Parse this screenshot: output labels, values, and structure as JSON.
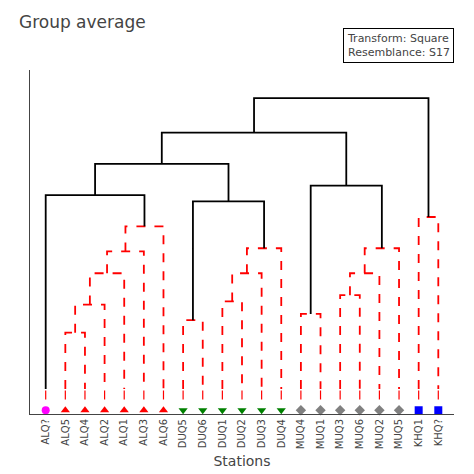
{
  "chart_data": {
    "type": "dendrogram",
    "title": "Group average",
    "xlabel": "Stations",
    "annotations": [
      "Transform: Square",
      "Resemblance: S17"
    ],
    "categories": [
      "ALQ?",
      "ALQ5",
      "ALQ4",
      "ALQ2",
      "ALQ1",
      "ALQ3",
      "ALQ6",
      "DUQ5",
      "DUQ6",
      "DUQ1",
      "DUQ2",
      "DUQ3",
      "DUQ4",
      "MUQ4",
      "MUQ1",
      "MUQ3",
      "MUQ6",
      "MUQ2",
      "MUQ5",
      "KHQ1",
      "KHQ?"
    ],
    "links": [
      {
        "left": "ALQ5",
        "right": "ALQ4",
        "height": 0.18,
        "color": "red",
        "line_style": "dashed"
      },
      {
        "left": 0,
        "right": "ALQ2",
        "height": 0.27,
        "color": "red",
        "line_style": "dashed"
      },
      {
        "left": 1,
        "right": "ALQ1",
        "height": 0.37,
        "color": "red",
        "line_style": "dashed"
      },
      {
        "left": 2,
        "right": "ALQ3",
        "height": 0.44,
        "color": "red",
        "line_style": "dashed"
      },
      {
        "left": 3,
        "right": "ALQ6",
        "height": 0.52,
        "color": "red",
        "line_style": "dashed"
      },
      {
        "left": "DUQ5",
        "right": "DUQ6",
        "height": 0.22,
        "color": "red",
        "line_style": "dashed"
      },
      {
        "left": "DUQ1",
        "right": "DUQ2",
        "height": 0.28,
        "color": "red",
        "line_style": "dashed"
      },
      {
        "left": 6,
        "right": "DUQ3",
        "height": 0.37,
        "color": "red",
        "line_style": "dashed"
      },
      {
        "left": 7,
        "right": "DUQ4",
        "height": 0.45,
        "color": "red",
        "line_style": "dashed"
      },
      {
        "left": "MUQ4",
        "right": "MUQ1",
        "height": 0.24,
        "color": "red",
        "line_style": "dashed"
      },
      {
        "left": "MUQ3",
        "right": "MUQ6",
        "height": 0.3,
        "color": "red",
        "line_style": "dashed"
      },
      {
        "left": 10,
        "right": "MUQ2",
        "height": 0.37,
        "color": "red",
        "line_style": "dashed"
      },
      {
        "left": 11,
        "right": "MUQ5",
        "height": 0.45,
        "color": "red",
        "line_style": "dashed"
      },
      {
        "left": "KHQ1",
        "right": "KHQ?",
        "height": 0.55,
        "color": "red",
        "line_style": "dashed"
      },
      {
        "left": "ALQ?",
        "right": 4,
        "height": 0.62,
        "color": "black",
        "line_style": "solid"
      },
      {
        "left": 5,
        "right": 8,
        "height": 0.6,
        "color": "black",
        "line_style": "solid"
      },
      {
        "left": 14,
        "right": 15,
        "height": 0.72,
        "color": "black",
        "line_style": "solid"
      },
      {
        "left": 9,
        "right": 12,
        "height": 0.65,
        "color": "black",
        "line_style": "solid"
      },
      {
        "left": 16,
        "right": 17,
        "height": 0.82,
        "color": "black",
        "line_style": "solid"
      },
      {
        "left": 18,
        "right": 13,
        "height": 0.93,
        "color": "black",
        "line_style": "solid"
      }
    ],
    "markers": [
      {
        "color": "magenta",
        "marker": "circle"
      },
      {
        "color": "red",
        "marker": "triangle-up"
      },
      {
        "color": "red",
        "marker": "triangle-up"
      },
      {
        "color": "red",
        "marker": "triangle-up"
      },
      {
        "color": "red",
        "marker": "triangle-up"
      },
      {
        "color": "red",
        "marker": "triangle-up"
      },
      {
        "color": "red",
        "marker": "triangle-up"
      },
      {
        "color": "green",
        "marker": "triangle-down"
      },
      {
        "color": "green",
        "marker": "triangle-down"
      },
      {
        "color": "green",
        "marker": "triangle-down"
      },
      {
        "color": "green",
        "marker": "triangle-down"
      },
      {
        "color": "green",
        "marker": "triangle-down"
      },
      {
        "color": "green",
        "marker": "triangle-down"
      },
      {
        "color": "gray",
        "marker": "diamond"
      },
      {
        "color": "gray",
        "marker": "diamond"
      },
      {
        "color": "gray",
        "marker": "diamond"
      },
      {
        "color": "gray",
        "marker": "diamond"
      },
      {
        "color": "gray",
        "marker": "diamond"
      },
      {
        "color": "gray",
        "marker": "diamond"
      },
      {
        "color": "blue",
        "marker": "square"
      },
      {
        "color": "blue",
        "marker": "square"
      }
    ],
    "xlim": [
      -0.8,
      20.8
    ],
    "ylim": [
      -0.08,
      1.02
    ],
    "tick_labels": "x",
    "grid": false
  }
}
